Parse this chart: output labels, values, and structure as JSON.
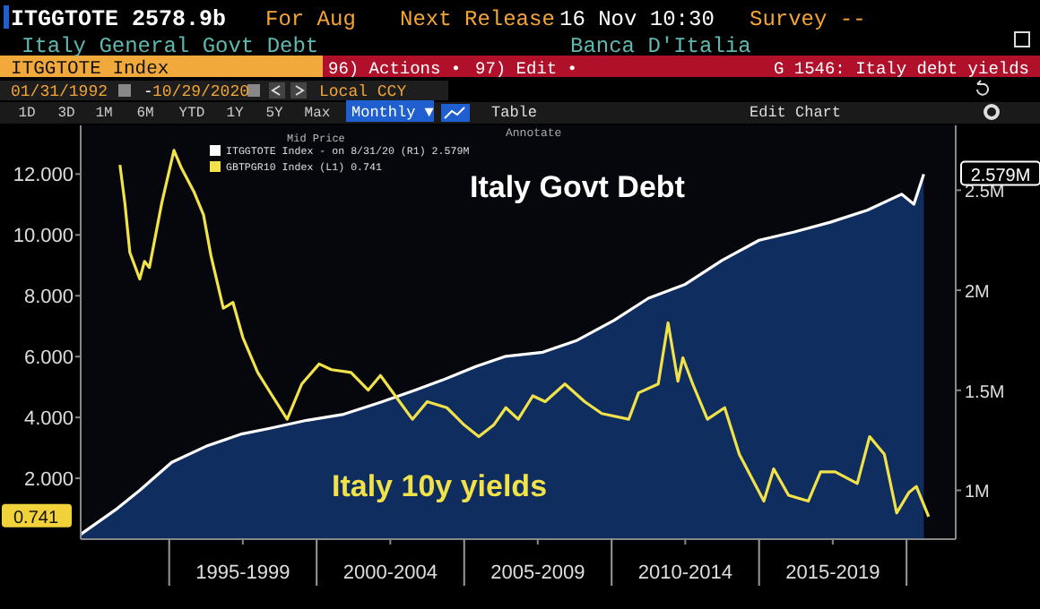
{
  "chart_data": {
    "type": "line",
    "title": "Italy General Govt Debt",
    "legend_title": "Mid Price",
    "xlim": [
      "1992-01",
      "2021-09"
    ],
    "xticks": [
      {
        "value": "1995-01",
        "label": null
      },
      {
        "value": "1997-07",
        "label": "1995-1999"
      },
      {
        "value": "2000-01",
        "label": null
      },
      {
        "value": "2002-07",
        "label": "2000-2004"
      },
      {
        "value": "2005-01",
        "label": null
      },
      {
        "value": "2007-07",
        "label": "2005-2009"
      },
      {
        "value": "2010-01",
        "label": null
      },
      {
        "value": "2012-07",
        "label": "2010-2014"
      },
      {
        "value": "2015-01",
        "label": null
      },
      {
        "value": "2017-07",
        "label": "2015-2019"
      },
      {
        "value": "2020-01",
        "label": null
      }
    ],
    "ylim": [
      0,
      13.6
    ],
    "yticks": [
      {
        "value": 2,
        "label": "2.000"
      },
      {
        "value": 4,
        "label": "4.000"
      },
      {
        "value": 6,
        "label": "6.000"
      },
      {
        "value": 8,
        "label": "8.000"
      },
      {
        "value": 10,
        "label": "10.000"
      },
      {
        "value": 12,
        "label": "12.000"
      }
    ],
    "y2lim": [
      0.756,
      2.824
    ],
    "y2ticks": [
      {
        "value": 1,
        "label": "1M"
      },
      {
        "value": 1.5,
        "label": "1.5M"
      },
      {
        "value": 2,
        "label": "2M"
      },
      {
        "value": 2.5,
        "label": "2.5M"
      }
    ],
    "series": [
      {
        "name": "Italy Govt Debt",
        "type": "area",
        "axis": "y2",
        "color": "#ffffff",
        "x": [
          "1992-01",
          "1993-04",
          "1994-01",
          "1995-02",
          "1996-04",
          "1997-06",
          "1998-06",
          "1999-09",
          "2000-12",
          "2002-03",
          "2003-05",
          "2004-04",
          "2005-06",
          "2006-06",
          "2007-09",
          "2008-11",
          "2010-02",
          "2011-04",
          "2012-07",
          "2013-10",
          "2015-01",
          "2016-03",
          "2017-06",
          "2018-09",
          "2019-11",
          "2020-04",
          "2020-08"
        ],
        "values": [
          0.78,
          0.91,
          1.0,
          1.14,
          1.22,
          1.28,
          1.31,
          1.35,
          1.38,
          1.44,
          1.5,
          1.55,
          1.62,
          1.67,
          1.69,
          1.75,
          1.85,
          1.96,
          2.03,
          2.15,
          2.25,
          2.29,
          2.34,
          2.4,
          2.48,
          2.43,
          2.58
        ]
      },
      {
        "name": "Italy 10y yields",
        "color": "#f2e24a",
        "x": [
          "1993-05",
          "1993-07",
          "1993-09",
          "1994-01",
          "1994-03",
          "1994-05",
          "1994-10",
          "1995-03",
          "1995-06",
          "1995-11",
          "1996-03",
          "1996-06",
          "1996-11",
          "1997-03",
          "1997-07",
          "1998-01",
          "1998-07",
          "1999-01",
          "1999-07",
          "2000-02",
          "2000-07",
          "2001-03",
          "2001-10",
          "2002-03",
          "2002-09",
          "2003-04",
          "2003-10",
          "2004-06",
          "2005-01",
          "2005-07",
          "2006-01",
          "2006-06",
          "2006-11",
          "2007-05",
          "2007-10",
          "2008-06",
          "2009-02",
          "2009-09",
          "2010-08",
          "2010-12",
          "2011-08",
          "2011-12",
          "2012-04",
          "2012-06",
          "2012-10",
          "2013-04",
          "2013-11",
          "2014-05",
          "2015-03",
          "2015-07",
          "2016-01",
          "2016-09",
          "2017-02",
          "2017-08",
          "2018-05",
          "2018-10",
          "2019-04",
          "2019-09",
          "2020-02",
          "2020-05",
          "2020-10"
        ],
        "values": [
          12.3,
          11.05,
          9.42,
          8.55,
          9.13,
          8.93,
          11.05,
          12.78,
          12.2,
          11.43,
          10.66,
          9.32,
          7.59,
          7.78,
          6.63,
          5.48,
          4.71,
          3.94,
          5.1,
          5.76,
          5.57,
          5.48,
          4.9,
          5.38,
          4.71,
          3.94,
          4.52,
          4.32,
          3.75,
          3.37,
          3.75,
          4.32,
          3.94,
          4.71,
          4.52,
          5.1,
          4.52,
          4.13,
          3.94,
          4.81,
          5.1,
          7.11,
          5.19,
          5.96,
          5.1,
          3.94,
          4.32,
          2.79,
          1.25,
          2.31,
          1.44,
          1.25,
          2.21,
          2.21,
          1.83,
          3.37,
          2.79,
          0.86,
          1.54,
          1.73,
          0.74
        ]
      }
    ],
    "annotations": [
      "ITGGTOTE 2578.9b",
      "For Aug",
      "Next Release",
      "16 Nov 10:30",
      "Survey --",
      "Banca D'Italia",
      "ITGGTOTE Index",
      "96) Actions •",
      "97) Edit •",
      "G 1546: Italy debt yields",
      "01/31/1992",
      "-",
      "10/29/2020",
      "Local CCY",
      "1D",
      "3D",
      "1M",
      "6M",
      "YTD",
      "1Y",
      "5Y",
      "Max",
      "Monthly ▼",
      "Table",
      "Edit Chart",
      "Annotate",
      "ITGGTOTE Index - on 8/31/20 (R1) 2.579M",
      "GBTPGR10 Index (L1) 0.741",
      "2.579M",
      "0.741"
    ]
  }
}
